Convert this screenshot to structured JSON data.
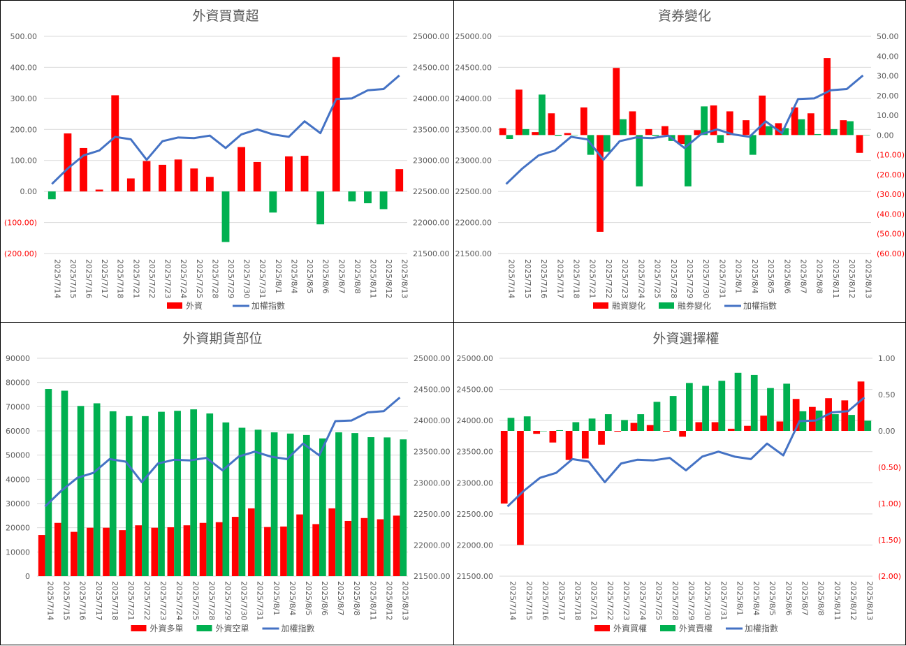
{
  "colors": {
    "red": "#ff0000",
    "green": "#00b050",
    "blue": "#4472c4",
    "grid": "#d9d9d9",
    "text": "#595959"
  },
  "dates": [
    "2025/7/14",
    "2025/7/15",
    "2025/7/16",
    "2025/7/17",
    "2025/7/18",
    "2025/7/21",
    "2025/7/22",
    "2025/7/23",
    "2025/7/24",
    "2025/7/25",
    "2025/7/28",
    "2025/7/29",
    "2025/7/30",
    "2025/7/31",
    "2025/8/1",
    "2025/8/4",
    "2025/8/5",
    "2025/8/6",
    "2025/8/7",
    "2025/8/8",
    "2025/8/11",
    "2025/8/12",
    "2025/8/13"
  ],
  "chart_data": [
    {
      "id": "foreign-net",
      "type": "bar",
      "title": "外資買賣超",
      "left_axis": {
        "ylim": [
          -200,
          500
        ],
        "ticks": [
          500,
          400,
          300,
          200,
          100,
          0,
          -100,
          -200
        ],
        "labels": [
          "500.00",
          "400.00",
          "300.00",
          "200.00",
          "100.00",
          "0.00",
          "(100.00)",
          "(200.00)"
        ]
      },
      "right_axis": {
        "ylim": [
          21500,
          25000
        ],
        "ticks": [
          25000,
          24500,
          24000,
          23500,
          23000,
          22500,
          22000,
          21500
        ],
        "labels": [
          "25000.00",
          "24500.00",
          "24000.00",
          "23500.00",
          "23000.00",
          "22500.00",
          "22000.00",
          "21500.00"
        ]
      },
      "bar_mode": "single-signcolor",
      "series": [
        {
          "name": "外資",
          "values": [
            -25,
            187,
            140,
            6,
            310,
            42,
            98,
            86,
            103,
            74,
            47,
            -163,
            143,
            95,
            -68,
            113,
            115,
            -106,
            433,
            -32,
            -38,
            -57,
            72
          ]
        }
      ],
      "line": {
        "name": "加權指數",
        "values": [
          22620,
          22870,
          23080,
          23160,
          23380,
          23340,
          23010,
          23310,
          23370,
          23360,
          23400,
          23200,
          23420,
          23500,
          23420,
          23380,
          23630,
          23440,
          23990,
          24000,
          24130,
          24150,
          24370
        ]
      },
      "legend_position": "bottom",
      "grid": true
    },
    {
      "id": "margin-short",
      "type": "bar",
      "title": "資券變化",
      "left_axis": {
        "ylim": [
          21500,
          25000
        ],
        "ticks": [
          25000,
          24500,
          24000,
          23500,
          23000,
          22500,
          22000,
          21500
        ],
        "labels": [
          "25000.00",
          "24500.00",
          "24000.00",
          "23500.00",
          "23000.00",
          "22500.00",
          "22000.00",
          "21500.00"
        ]
      },
      "right_axis": {
        "ylim": [
          -60,
          50
        ],
        "ticks": [
          50,
          40,
          30,
          20,
          10,
          0,
          -10,
          -20,
          -30,
          -40,
          -50,
          -60
        ],
        "labels": [
          "50.00",
          "40.00",
          "30.00",
          "20.00",
          "10.00",
          "0.00",
          "(10.00)",
          "(20.00)",
          "(30.00)",
          "(40.00)",
          "(50.00)",
          "(60.00)"
        ]
      },
      "bar_mode": "grouped",
      "series": [
        {
          "name": "融資變化",
          "values": [
            3.5,
            23,
            1.5,
            11,
            1,
            14,
            -49,
            34,
            12,
            3,
            4.5,
            -4.5,
            2.5,
            15,
            12,
            7.5,
            20,
            6,
            14,
            11,
            39,
            7.5,
            -9
          ]
        },
        {
          "name": "融券變化",
          "values": [
            -2,
            3,
            20.5,
            -0.5,
            0,
            -10,
            -8.5,
            8,
            -26,
            -0.5,
            -3,
            -26,
            14.5,
            -4,
            0,
            -10,
            4.5,
            3.5,
            8,
            0.5,
            3,
            7,
            0
          ]
        }
      ],
      "line": {
        "name": "加權指數",
        "values": [
          22620,
          22870,
          23080,
          23160,
          23380,
          23340,
          23010,
          23310,
          23370,
          23360,
          23400,
          23200,
          23420,
          23500,
          23420,
          23380,
          23630,
          23440,
          23990,
          24000,
          24130,
          24150,
          24370
        ]
      },
      "legend_position": "bottom",
      "grid": true
    },
    {
      "id": "futures-position",
      "type": "bar",
      "title": "外資期貨部位",
      "left_axis": {
        "ylim": [
          0,
          90000
        ],
        "ticks": [
          90000,
          80000,
          70000,
          60000,
          50000,
          40000,
          30000,
          20000,
          10000,
          0
        ],
        "labels": [
          "90000",
          "80000",
          "70000",
          "60000",
          "50000",
          "40000",
          "30000",
          "20000",
          "10000",
          "0"
        ]
      },
      "right_axis": {
        "ylim": [
          21500,
          25000
        ],
        "ticks": [
          25000,
          24500,
          24000,
          23500,
          23000,
          22500,
          22000,
          21500
        ],
        "labels": [
          "25000.00",
          "24500.00",
          "24000.00",
          "23500.00",
          "23000.00",
          "22500.00",
          "22000.00",
          "21500.00"
        ]
      },
      "bar_mode": "grouped",
      "series": [
        {
          "name": "外資多單",
          "values": [
            17000,
            22000,
            18300,
            20000,
            20000,
            19000,
            21000,
            20000,
            20200,
            21000,
            22000,
            22300,
            24500,
            28000,
            20300,
            20500,
            25500,
            21500,
            28000,
            22800,
            24000,
            23500,
            25000
          ]
        },
        {
          "name": "外資空單",
          "values": [
            77300,
            76600,
            70300,
            71400,
            68100,
            66100,
            66100,
            67900,
            68300,
            68900,
            67200,
            63500,
            61300,
            60500,
            59400,
            58900,
            58300,
            56900,
            59400,
            59100,
            57400,
            57300,
            56500
          ]
        }
      ],
      "line": {
        "name": "加權指數",
        "values": [
          22620,
          22870,
          23080,
          23160,
          23380,
          23340,
          23010,
          23310,
          23370,
          23360,
          23400,
          23200,
          23420,
          23500,
          23420,
          23380,
          23630,
          23440,
          23990,
          24000,
          24130,
          24150,
          24370
        ]
      },
      "legend_position": "bottom",
      "grid": true
    },
    {
      "id": "options",
      "type": "bar",
      "title": "外資選擇權",
      "left_axis": {
        "ylim": [
          21500,
          25000
        ],
        "ticks": [
          25000,
          24500,
          24000,
          23500,
          23000,
          22500,
          22000,
          21500
        ],
        "labels": [
          "25000.00",
          "24500.00",
          "24000.00",
          "23500.00",
          "23000.00",
          "22500.00",
          "22000.00",
          "21500.00"
        ]
      },
      "right_axis": {
        "ylim": [
          -2,
          1
        ],
        "ticks": [
          1,
          0.5,
          0,
          -0.5,
          -1,
          -1.5,
          -2
        ],
        "labels": [
          "1.00",
          "0.50",
          "0.00",
          "(0.50)",
          "(1.00)",
          "(1.50)",
          "(2.00)"
        ]
      },
      "bar_mode": "grouped",
      "series": [
        {
          "name": "外資買權",
          "values": [
            -1,
            -1.57,
            -0.04,
            -0.16,
            -0.4,
            -0.38,
            -0.19,
            -0.01,
            0.11,
            0.08,
            -0.01,
            -0.08,
            0.12,
            0.12,
            0.03,
            0.07,
            0.21,
            0.13,
            0.44,
            0.33,
            0.45,
            0.42,
            0.68
          ]
        },
        {
          "name": "外資賣權",
          "values": [
            0.18,
            0.2,
            0,
            0.01,
            0.12,
            0.17,
            0.23,
            0.15,
            0.23,
            0.4,
            0.48,
            0.66,
            0.62,
            0.69,
            0.8,
            0.77,
            0.59,
            0.65,
            0.27,
            0.28,
            0.23,
            0.22,
            0.14
          ]
        }
      ],
      "line": {
        "name": "加權指數",
        "values": [
          22620,
          22870,
          23080,
          23160,
          23380,
          23340,
          23010,
          23310,
          23370,
          23360,
          23400,
          23200,
          23420,
          23500,
          23420,
          23380,
          23630,
          23440,
          23990,
          24000,
          24130,
          24150,
          24370
        ]
      },
      "legend_position": "bottom",
      "grid": true
    }
  ]
}
